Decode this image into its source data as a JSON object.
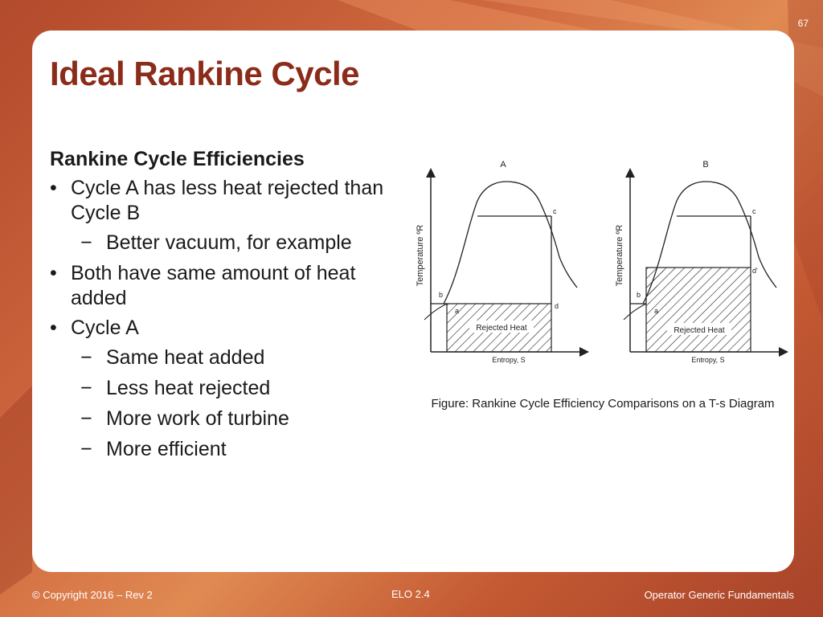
{
  "slide": {
    "number": "67",
    "title": "Ideal Rankine Cycle"
  },
  "content": {
    "subheading": "Rankine Cycle Efficiencies",
    "bullets": [
      {
        "text": "Cycle A has less heat rejected than Cycle B",
        "subs": [
          "Better vacuum, for example"
        ]
      },
      {
        "text": "Both have same amount of heat added",
        "subs": []
      },
      {
        "text": "Cycle A",
        "subs": [
          "Same heat added",
          "Less heat rejected",
          "More work of turbine",
          "More efficient"
        ]
      }
    ]
  },
  "figure": {
    "diagrams": [
      {
        "label": "A",
        "ylabel": "Temperature ºR",
        "xlabel": "Entropy, S",
        "region_label": "Rejected Heat",
        "points": {
          "a": "a",
          "b": "b",
          "c": "c",
          "d": "d"
        }
      },
      {
        "label": "B",
        "ylabel": "Temperature ºR",
        "xlabel": "Entropy, S",
        "region_label": "Rejected Heat",
        "points": {
          "a": "a",
          "b": "b",
          "c": "c",
          "d": "d'"
        }
      }
    ],
    "caption": "Figure: Rankine Cycle Efficiency Comparisons on a T-s Diagram"
  },
  "footer": {
    "left": "© Copyright 2016 – Rev 2",
    "center": "ELO 2.4",
    "right": "Operator Generic Fundamentals"
  },
  "colors": {
    "title": "#8b2c1a",
    "background": "#c45a33",
    "card": "#ffffff"
  }
}
